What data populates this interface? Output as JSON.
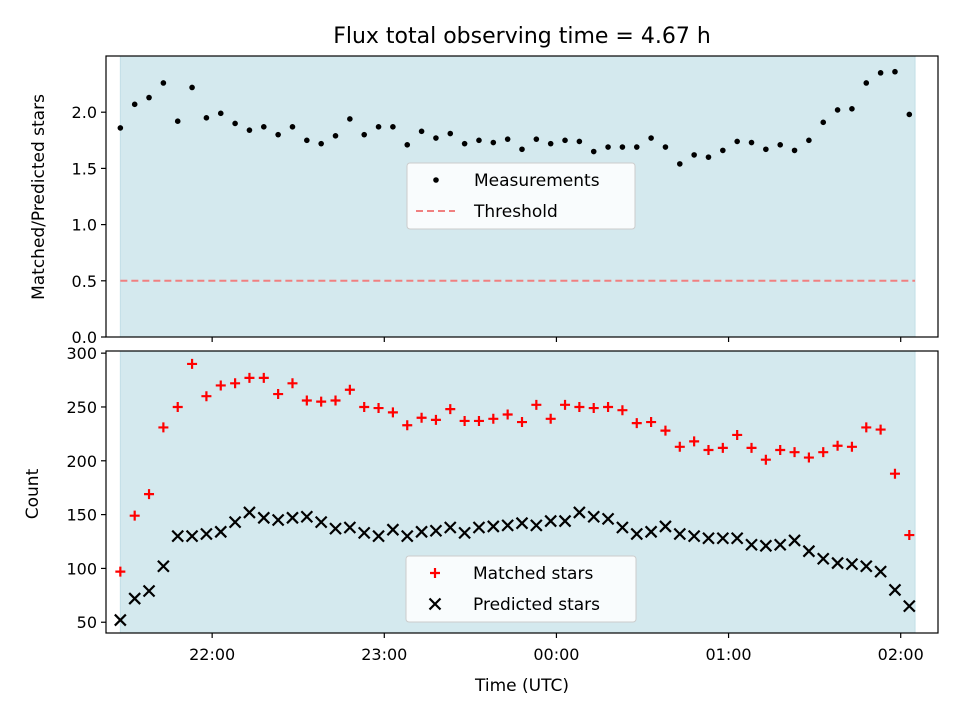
{
  "chart_data": [
    {
      "type": "scatter",
      "title": "Flux total observing time = 4.67 h",
      "xlabel": "",
      "ylabel": "Matched/Predicted stars",
      "xlim": [
        "21:23",
        "02:13"
      ],
      "ylim": [
        0,
        2.5
      ],
      "yticks": [
        "0.0",
        "0.5",
        "1.0",
        "1.5",
        "2.0"
      ],
      "grid": false,
      "legend_position": "center",
      "shaded_span": [
        "21:28",
        "02:05"
      ],
      "shade_color": "#d4e9ee",
      "series": [
        {
          "name": "Measurements",
          "color": "#000000",
          "marker": "dot",
          "x": [
            "21:28",
            "21:33",
            "21:38",
            "21:43",
            "21:48",
            "21:53",
            "21:58",
            "22:03",
            "22:08",
            "22:13",
            "22:18",
            "22:23",
            "22:28",
            "22:33",
            "22:38",
            "22:43",
            "22:48",
            "22:53",
            "22:58",
            "23:03",
            "23:08",
            "23:13",
            "23:18",
            "23:23",
            "23:28",
            "23:33",
            "23:38",
            "23:43",
            "23:48",
            "23:53",
            "23:58",
            "00:03",
            "00:08",
            "00:13",
            "00:18",
            "00:23",
            "00:28",
            "00:33",
            "00:38",
            "00:43",
            "00:48",
            "00:53",
            "00:58",
            "01:03",
            "01:08",
            "01:13",
            "01:18",
            "01:23",
            "01:28",
            "01:33",
            "01:38",
            "01:43",
            "01:48",
            "01:53",
            "01:58",
            "02:03"
          ],
          "values": [
            1.86,
            2.07,
            2.13,
            2.26,
            1.92,
            2.22,
            1.95,
            1.99,
            1.9,
            1.84,
            1.87,
            1.8,
            1.87,
            1.75,
            1.72,
            1.79,
            1.94,
            1.8,
            1.87,
            1.87,
            1.71,
            1.83,
            1.77,
            1.81,
            1.72,
            1.75,
            1.73,
            1.76,
            1.67,
            1.76,
            1.72,
            1.75,
            1.74,
            1.65,
            1.69,
            1.69,
            1.69,
            1.77,
            1.69,
            1.54,
            1.62,
            1.6,
            1.66,
            1.74,
            1.73,
            1.67,
            1.71,
            1.66,
            1.75,
            1.91,
            2.02,
            2.03,
            2.26,
            2.35,
            2.36,
            1.98
          ]
        },
        {
          "name": "Threshold",
          "color": "#f08080",
          "style": "dashed",
          "x": [
            "21:28",
            "02:05"
          ],
          "values": [
            0.5,
            0.5
          ]
        }
      ]
    },
    {
      "type": "scatter",
      "title": "",
      "xlabel": "Time (UTC)",
      "ylabel": "Count",
      "xlim": [
        "21:23",
        "02:13"
      ],
      "ylim": [
        40,
        302
      ],
      "yticks": [
        "50",
        "100",
        "150",
        "200",
        "250",
        "300"
      ],
      "xticks": [
        "22:00",
        "23:00",
        "00:00",
        "01:00",
        "02:00"
      ],
      "grid": false,
      "legend_position": "lower center",
      "shaded_span": [
        "21:28",
        "02:05"
      ],
      "shade_color": "#d4e9ee",
      "series": [
        {
          "name": "Matched stars",
          "color": "#ff0000",
          "marker": "plus",
          "x": [
            "21:28",
            "21:33",
            "21:38",
            "21:43",
            "21:48",
            "21:53",
            "21:58",
            "22:03",
            "22:08",
            "22:13",
            "22:18",
            "22:23",
            "22:28",
            "22:33",
            "22:38",
            "22:43",
            "22:48",
            "22:53",
            "22:58",
            "23:03",
            "23:08",
            "23:13",
            "23:18",
            "23:23",
            "23:28",
            "23:33",
            "23:38",
            "23:43",
            "23:48",
            "23:53",
            "23:58",
            "00:03",
            "00:08",
            "00:13",
            "00:18",
            "00:23",
            "00:28",
            "00:33",
            "00:38",
            "00:43",
            "00:48",
            "00:53",
            "00:58",
            "01:03",
            "01:08",
            "01:13",
            "01:18",
            "01:23",
            "01:28",
            "01:33",
            "01:38",
            "01:43",
            "01:48",
            "01:53",
            "01:58",
            "02:03"
          ],
          "values": [
            97,
            149,
            169,
            231,
            250,
            290,
            260,
            270,
            272,
            277,
            277,
            262,
            272,
            256,
            255,
            256,
            266,
            250,
            249,
            245,
            233,
            240,
            238,
            248,
            237,
            237,
            239,
            243,
            236,
            252,
            239,
            252,
            250,
            249,
            250,
            247,
            235,
            236,
            228,
            213,
            218,
            210,
            212,
            224,
            212,
            201,
            210,
            208,
            203,
            208,
            214,
            213,
            231,
            229,
            188,
            131
          ]
        },
        {
          "name": "Predicted stars",
          "color": "#000000",
          "marker": "x",
          "x": [
            "21:28",
            "21:33",
            "21:38",
            "21:43",
            "21:48",
            "21:53",
            "21:58",
            "22:03",
            "22:08",
            "22:13",
            "22:18",
            "22:23",
            "22:28",
            "22:33",
            "22:38",
            "22:43",
            "22:48",
            "22:53",
            "22:58",
            "23:03",
            "23:08",
            "23:13",
            "23:18",
            "23:23",
            "23:28",
            "23:33",
            "23:38",
            "23:43",
            "23:48",
            "23:53",
            "23:58",
            "00:03",
            "00:08",
            "00:13",
            "00:18",
            "00:23",
            "00:28",
            "00:33",
            "00:38",
            "00:43",
            "00:48",
            "00:53",
            "00:58",
            "01:03",
            "01:08",
            "01:13",
            "01:18",
            "01:23",
            "01:28",
            "01:33",
            "01:38",
            "01:43",
            "01:48",
            "01:53",
            "01:58",
            "02:03"
          ],
          "values": [
            52,
            72,
            79,
            102,
            130,
            130,
            132,
            134,
            143,
            152,
            147,
            145,
            147,
            148,
            143,
            137,
            138,
            133,
            130,
            136,
            130,
            134,
            135,
            138,
            133,
            138,
            139,
            140,
            142,
            140,
            144,
            144,
            152,
            148,
            146,
            138,
            132,
            134,
            139,
            132,
            130,
            128,
            128,
            128,
            122,
            121,
            122,
            126,
            116,
            109,
            105,
            104,
            102,
            97,
            80,
            65
          ]
        }
      ]
    }
  ]
}
